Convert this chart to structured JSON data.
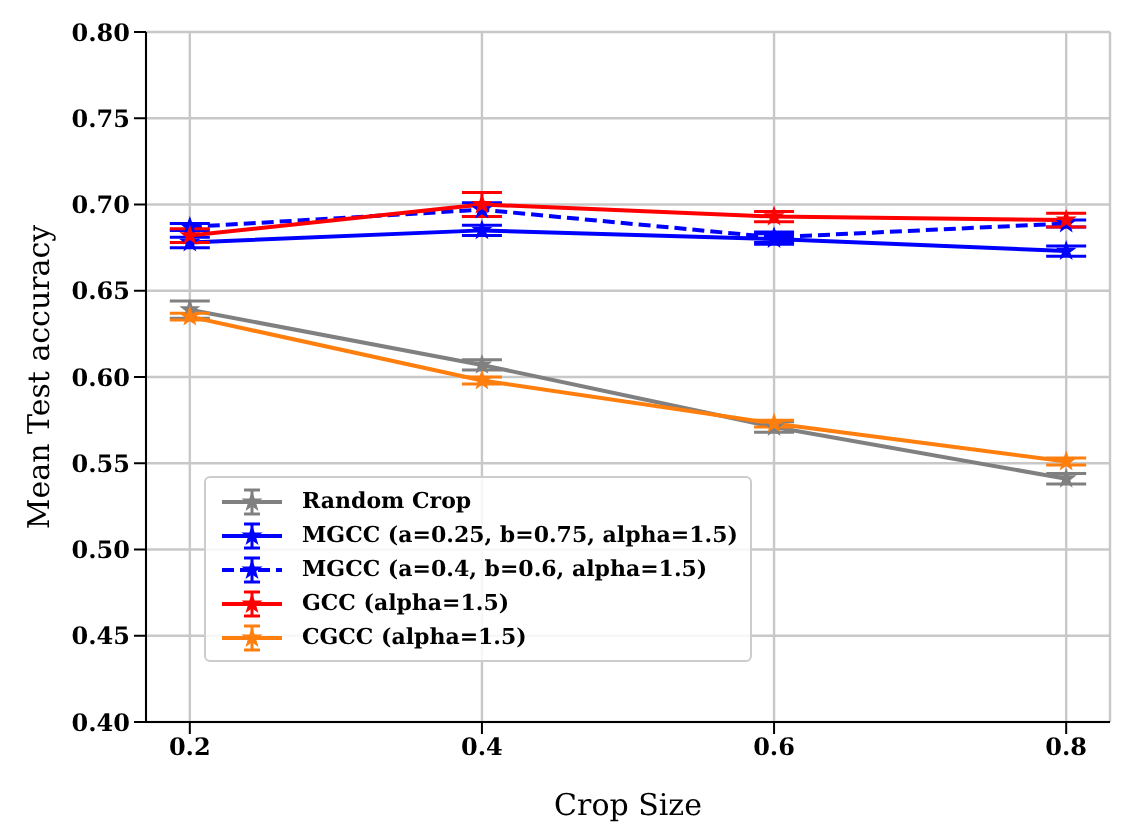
{
  "chart_data": {
    "type": "line",
    "xlabel": "Crop Size",
    "ylabel": "Mean Test accuracy",
    "x": [
      0.2,
      0.4,
      0.6,
      0.8
    ],
    "xlim": [
      0.17,
      0.83
    ],
    "xticks": [
      0.2,
      0.4,
      0.6,
      0.8
    ],
    "ylim": [
      0.4,
      0.8
    ],
    "yticks": [
      {
        "value": 0.4,
        "label": "0.40"
      },
      0.45,
      {
        "value": 0.5,
        "label": "0.50"
      },
      0.55,
      {
        "value": 0.6,
        "label": "0.60"
      },
      0.65,
      {
        "value": 0.7,
        "label": "0.70"
      },
      0.75,
      {
        "value": 0.8,
        "label": "0.80"
      }
    ],
    "grid": true,
    "legend": "bottom left",
    "marker": "star",
    "series": [
      {
        "name": "Random Crop",
        "color": "#808080",
        "line_style": "solid",
        "values": [
          0.639,
          0.607,
          0.571,
          0.541
        ],
        "errors": [
          0.005,
          0.003,
          0.003,
          0.003
        ]
      },
      {
        "name": "MGCC (a=0.25, b=0.75, alpha=1.5)",
        "color": "#0000ff",
        "line_style": "solid",
        "values": [
          0.678,
          0.685,
          0.68,
          0.673
        ],
        "errors": [
          0.003,
          0.003,
          0.003,
          0.003
        ]
      },
      {
        "name": "MGCC (a=0.4, b=0.6, alpha=1.5)",
        "color": "#0000ff",
        "line_style": "dashed",
        "values": [
          0.687,
          0.697,
          0.681,
          0.689
        ],
        "errors": [
          0.002,
          0.004,
          0.003,
          0.002
        ]
      },
      {
        "name": "GCC (alpha=1.5)",
        "color": "#ff0000",
        "line_style": "solid",
        "values": [
          0.682,
          0.7,
          0.693,
          0.691
        ],
        "errors": [
          0.004,
          0.007,
          0.003,
          0.004
        ]
      },
      {
        "name": "CGCC (alpha=1.5)",
        "color": "#ff7f0e",
        "line_style": "solid",
        "values": [
          0.635,
          0.598,
          0.573,
          0.551
        ],
        "errors": [
          0.002,
          0.002,
          0.002,
          0.002
        ]
      }
    ]
  }
}
